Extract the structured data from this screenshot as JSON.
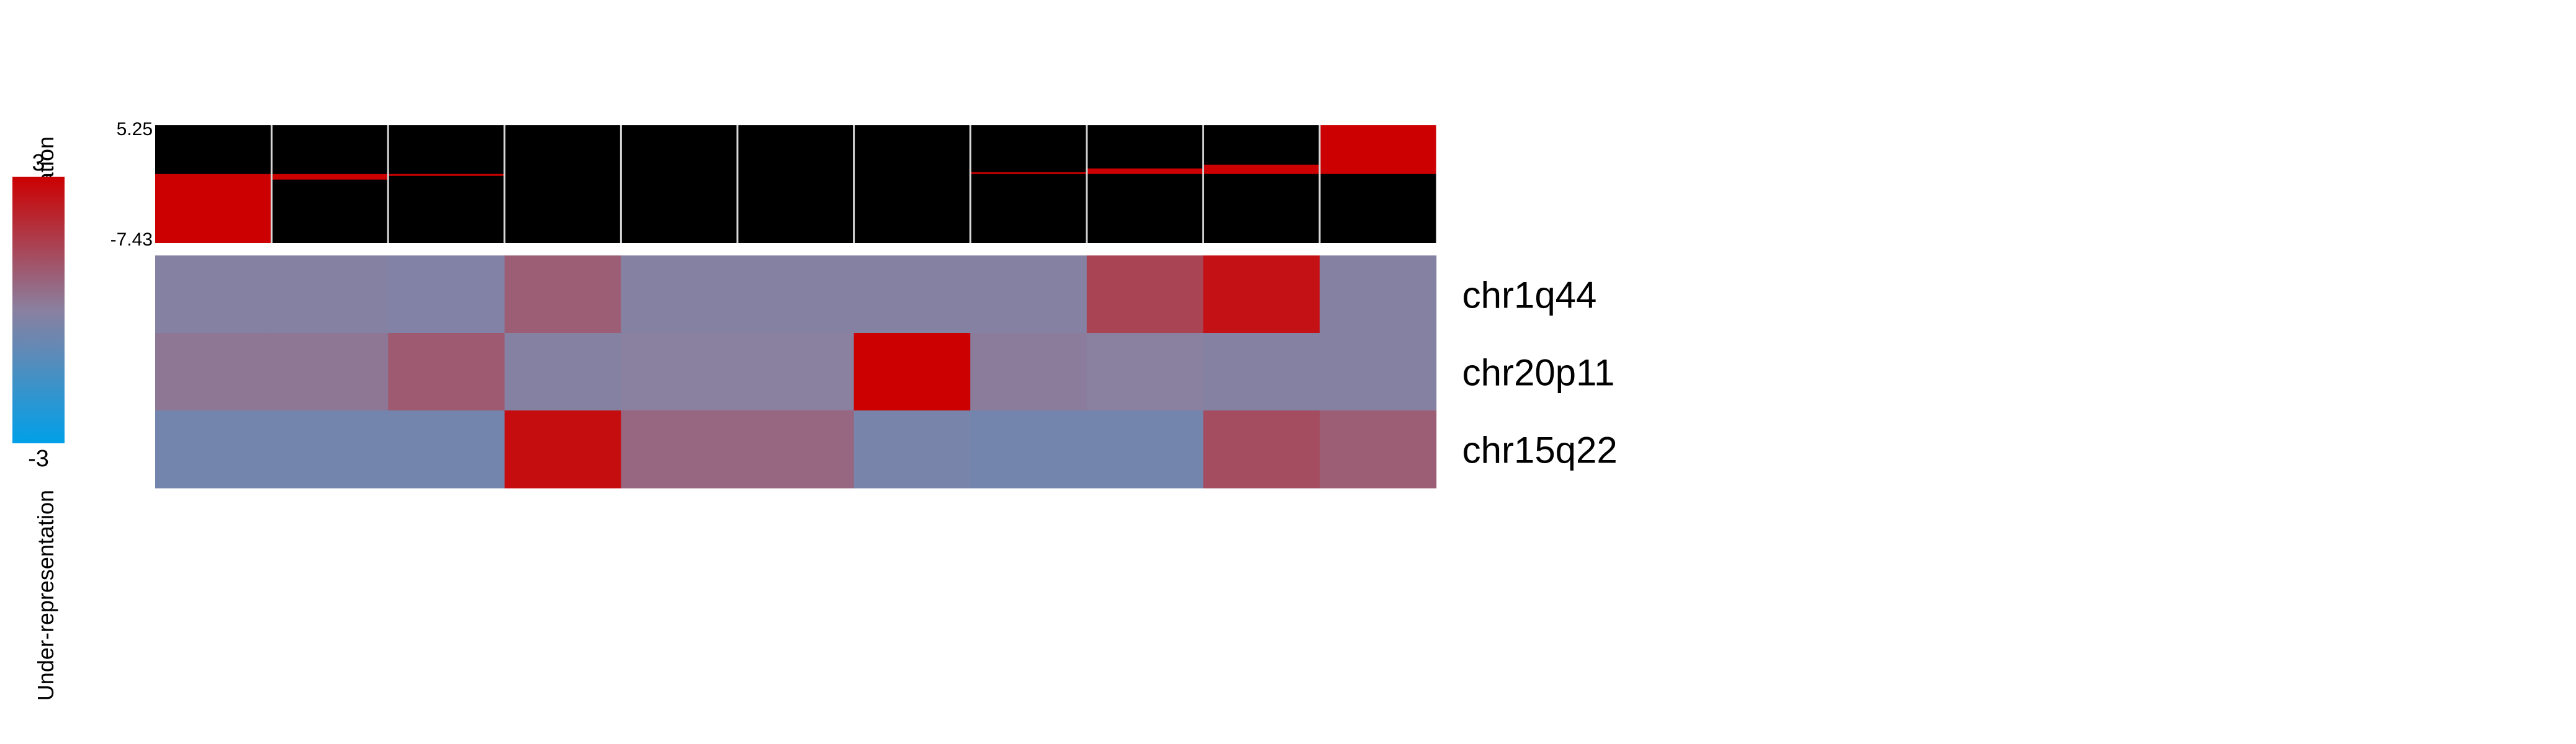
{
  "legend": {
    "over_label": "Over-representation",
    "under_label": "Under-representation",
    "max_label": "3",
    "min_label": "-3",
    "color_low": "#00A0E8",
    "color_mid": "#8A80A0",
    "color_high": "#CC0000"
  },
  "chart_data": [
    {
      "type": "bar",
      "title": "",
      "ylim": [
        -7.43,
        5.25
      ],
      "y_tick_labels": [
        "5.25",
        "-7.43"
      ],
      "values": [
        -7.43,
        -0.6,
        -0.1,
        0,
        0,
        0,
        0,
        0.15,
        0.6,
        1.0,
        5.25
      ],
      "bar_color": "#CC0000",
      "background": "#000000"
    },
    {
      "type": "heatmap",
      "title": "",
      "color_range": [
        -3,
        3
      ],
      "rows": [
        "chr1q44",
        "chr20p11",
        "chr15q22"
      ],
      "values": [
        [
          -0.1,
          -0.1,
          -0.2,
          0.8,
          -0.1,
          -0.1,
          -0.1,
          -0.1,
          1.4,
          2.6,
          -0.1
        ],
        [
          0.2,
          0.2,
          0.9,
          -0.1,
          0.0,
          0.0,
          3.0,
          0.1,
          0.0,
          -0.1,
          -0.1
        ],
        [
          -0.5,
          -0.5,
          -0.5,
          2.7,
          0.6,
          0.6,
          -0.4,
          -0.5,
          -0.5,
          1.2,
          0.8
        ]
      ]
    }
  ]
}
